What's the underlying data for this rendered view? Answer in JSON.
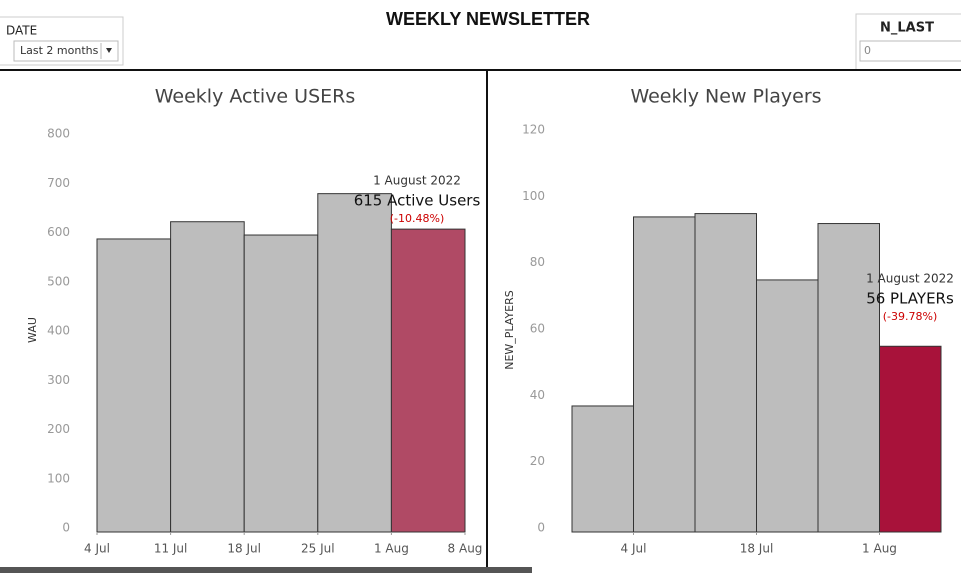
{
  "header": {
    "title": "WEEKLY NEWSLETTER",
    "filters": [
      {
        "label": "DATE",
        "value": "Last 2 months"
      },
      {
        "label": "N_LAST",
        "value": "0"
      }
    ]
  },
  "chart_data": [
    {
      "type": "histogram",
      "title": "Weekly Active USERs",
      "y_label": "WAU",
      "bins": [
        "4 Jul",
        "11 Jul",
        "18 Jul",
        "25 Jul",
        "1 Aug",
        "8 Aug"
      ],
      "values": [
        595,
        630,
        603,
        687,
        615
      ],
      "colors": [
        "#bdbdbd",
        "#bdbdbd",
        "#bdbdbd",
        "#bdbdbd",
        "#b04a65"
      ],
      "ylim": [
        0,
        800
      ],
      "yticks": [
        0,
        100,
        200,
        300,
        400,
        500,
        600,
        700,
        800
      ],
      "annotations": [
        "1 August 2022",
        "615 Active Users",
        "(-10.48%)"
      ]
    },
    {
      "type": "histogram",
      "title": "Weekly New Players",
      "y_label": "NEW_PLAYERS",
      "bins": [
        null,
        "4 Jul",
        null,
        "18 Jul",
        null,
        "1 Aug",
        null
      ],
      "values": [
        38,
        95,
        96,
        76,
        93,
        56
      ],
      "colors": [
        "#bdbdbd",
        "#bdbdbd",
        "#bdbdbd",
        "#bdbdbd",
        "#bdbdbd",
        "#a8123a"
      ],
      "ylim": [
        0,
        120
      ],
      "yticks": [
        0,
        20,
        40,
        60,
        80,
        100,
        120
      ],
      "annotations": [
        "1 August 2022",
        "56 PLAYERs",
        "(-39.78%)"
      ]
    }
  ]
}
